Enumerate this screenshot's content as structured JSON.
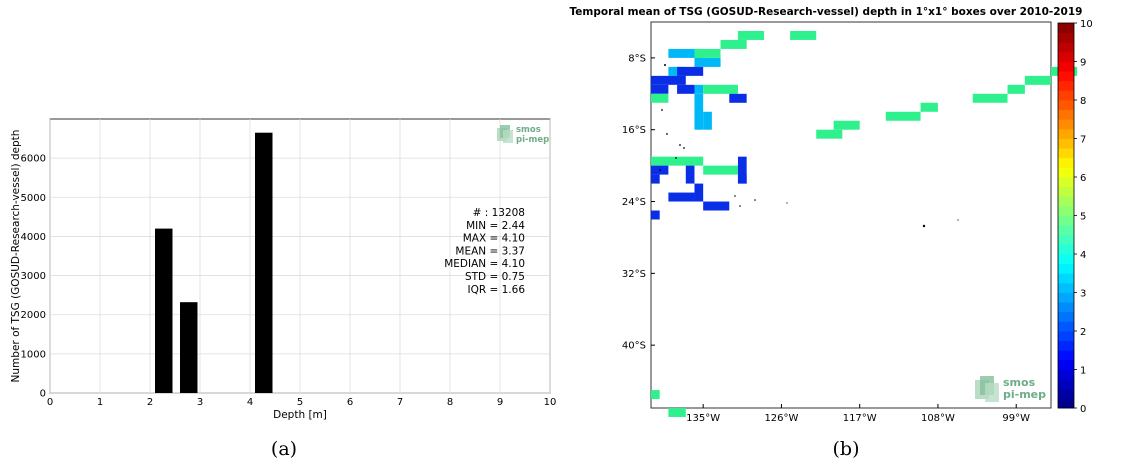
{
  "captions": {
    "a": "(a)",
    "b": "(b)"
  },
  "logo": {
    "line1": "smos",
    "line2": "pi-mep"
  },
  "chart_data": [
    {
      "type": "bar",
      "xlabel": "Depth [m]",
      "ylabel": "Number of TSG (GOSUD-Research-vessel) depth",
      "xlim": [
        0,
        10
      ],
      "ylim": [
        0,
        7000
      ],
      "xticks": [
        0,
        1,
        2,
        3,
        4,
        5,
        6,
        7,
        8,
        9,
        10
      ],
      "yticks": [
        0,
        1000,
        2000,
        3000,
        4000,
        5000,
        6000
      ],
      "grid": true,
      "bins": [
        {
          "x0": 2.1,
          "x1": 2.45,
          "value": 4200
        },
        {
          "x0": 2.6,
          "x1": 2.95,
          "value": 2320
        },
        {
          "x0": 4.1,
          "x1": 4.45,
          "value": 6650
        }
      ],
      "stats": [
        "# : 13208",
        "MIN = 2.44",
        "MAX =  4.10",
        "MEAN = 3.37",
        "MEDIAN = 4.10",
        "STD = 0.75",
        "IQR = 1.66"
      ]
    },
    {
      "type": "heatmap",
      "title": "Temporal mean of TSG (GOSUD-Research-vessel) depth in 1°x1° boxes over 2010-2019",
      "xlim": [
        -141,
        -95
      ],
      "ylim": [
        -47,
        -4
      ],
      "xticks": [
        {
          "value": -135,
          "label": "135°W"
        },
        {
          "value": -126,
          "label": "126°W"
        },
        {
          "value": -117,
          "label": "117°W"
        },
        {
          "value": -108,
          "label": "108°W"
        },
        {
          "value": -99,
          "label": "99°W"
        }
      ],
      "yticks": [
        {
          "value": -8,
          "label": "8°S"
        },
        {
          "value": -16,
          "label": "16°S"
        },
        {
          "value": -24,
          "label": "24°S"
        },
        {
          "value": -32,
          "label": "32°S"
        },
        {
          "value": -40,
          "label": "40°S"
        }
      ],
      "colorbar": {
        "min": 0,
        "max": 10,
        "ticks": [
          0,
          1,
          2,
          3,
          4,
          5,
          6,
          7,
          8,
          9,
          10
        ],
        "colormap": "jet"
      },
      "colors": {
        "cyan": "#00b8f5",
        "green": "#2ef18e",
        "blue": "#0a2ee6"
      },
      "cells": [
        {
          "lon": -139,
          "lat": -7,
          "w": 4,
          "h": 1,
          "c": "cyan"
        },
        {
          "lon": -136,
          "lat": -8,
          "w": 3,
          "h": 1,
          "c": "cyan"
        },
        {
          "lon": -133,
          "lat": -6,
          "w": 3,
          "h": 1,
          "c": "green"
        },
        {
          "lon": -131,
          "lat": -5,
          "w": 3,
          "h": 1,
          "c": "green"
        },
        {
          "lon": -125,
          "lat": -5,
          "w": 3,
          "h": 1,
          "c": "green"
        },
        {
          "lon": -136,
          "lat": -7,
          "w": 3,
          "h": 1,
          "c": "green"
        },
        {
          "lon": -139,
          "lat": -9,
          "w": 2,
          "h": 1,
          "c": "cyan"
        },
        {
          "lon": -138,
          "lat": -9,
          "w": 3,
          "h": 1,
          "c": "blue"
        },
        {
          "lon": -141,
          "lat": -10,
          "w": 4,
          "h": 1,
          "c": "blue"
        },
        {
          "lon": -141,
          "lat": -11,
          "w": 2,
          "h": 1,
          "c": "blue"
        },
        {
          "lon": -141,
          "lat": -12,
          "w": 2,
          "h": 1,
          "c": "green"
        },
        {
          "lon": -138,
          "lat": -11,
          "w": 2,
          "h": 1,
          "c": "blue"
        },
        {
          "lon": -136,
          "lat": -11,
          "w": 1,
          "h": 1,
          "c": "cyan"
        },
        {
          "lon": -135,
          "lat": -11,
          "w": 4,
          "h": 1,
          "c": "green"
        },
        {
          "lon": -132,
          "lat": -12,
          "w": 2,
          "h": 1,
          "c": "blue"
        },
        {
          "lon": -136,
          "lat": -12,
          "w": 1,
          "h": 4,
          "c": "cyan"
        },
        {
          "lon": -135,
          "lat": -14,
          "w": 1,
          "h": 2,
          "c": "cyan"
        },
        {
          "lon": -122,
          "lat": -16,
          "w": 3,
          "h": 1,
          "c": "green"
        },
        {
          "lon": -120,
          "lat": -15,
          "w": 3,
          "h": 1,
          "c": "green"
        },
        {
          "lon": -114,
          "lat": -14,
          "w": 4,
          "h": 1,
          "c": "green"
        },
        {
          "lon": -110,
          "lat": -13,
          "w": 2,
          "h": 1,
          "c": "green"
        },
        {
          "lon": -104,
          "lat": -12,
          "w": 4,
          "h": 1,
          "c": "green"
        },
        {
          "lon": -100,
          "lat": -11,
          "w": 2,
          "h": 1,
          "c": "green"
        },
        {
          "lon": -98,
          "lat": -10,
          "w": 3,
          "h": 1,
          "c": "green"
        },
        {
          "lon": -95,
          "lat": -9,
          "w": 3,
          "h": 1,
          "c": "green"
        },
        {
          "lon": -141,
          "lat": -19,
          "w": 5,
          "h": 1,
          "c": "green"
        },
        {
          "lon": -136,
          "lat": -19,
          "w": 1,
          "h": 1,
          "c": "green"
        },
        {
          "lon": -135,
          "lat": -20,
          "w": 4,
          "h": 1,
          "c": "green"
        },
        {
          "lon": -131,
          "lat": -19,
          "w": 1,
          "h": 3,
          "c": "blue"
        },
        {
          "lon": -131,
          "lat": -21,
          "w": 1,
          "h": 1,
          "c": "blue"
        },
        {
          "lon": -141,
          "lat": -20,
          "w": 2,
          "h": 1,
          "c": "blue"
        },
        {
          "lon": -141,
          "lat": -21,
          "w": 1,
          "h": 1,
          "c": "blue"
        },
        {
          "lon": -137,
          "lat": -20,
          "w": 1,
          "h": 2,
          "c": "blue"
        },
        {
          "lon": -139,
          "lat": -23,
          "w": 3,
          "h": 1,
          "c": "blue"
        },
        {
          "lon": -136,
          "lat": -22,
          "w": 1,
          "h": 2,
          "c": "blue"
        },
        {
          "lon": -135,
          "lat": -24,
          "w": 3,
          "h": 1,
          "c": "blue"
        },
        {
          "lon": -141,
          "lat": -25,
          "w": 1,
          "h": 1,
          "c": "blue"
        },
        {
          "lon": -141,
          "lat": -45,
          "w": 1,
          "h": 1,
          "c": "green"
        },
        {
          "lon": -139,
          "lat": -47,
          "w": 2,
          "h": 1,
          "c": "green"
        }
      ]
    }
  ]
}
